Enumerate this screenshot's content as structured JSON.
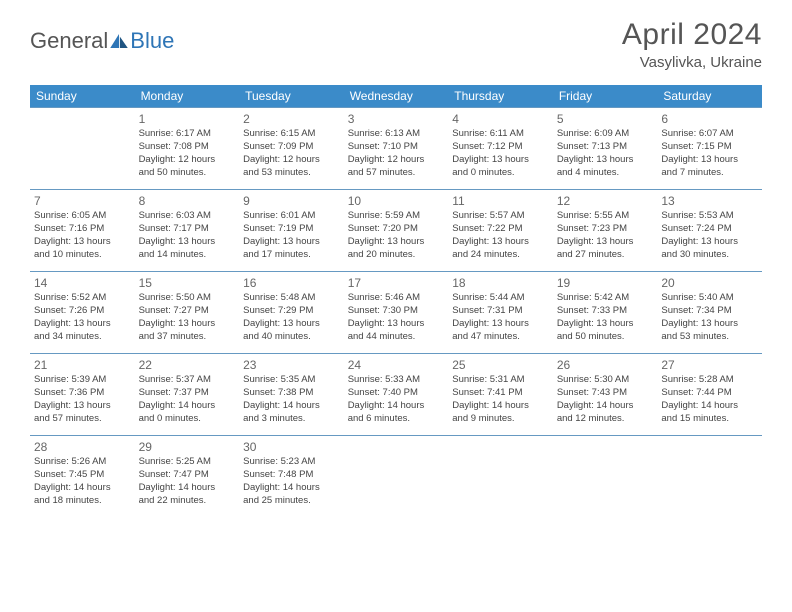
{
  "logo": {
    "part1": "General",
    "part2": "Blue"
  },
  "title": "April 2024",
  "location": "Vasylivka, Ukraine",
  "colors": {
    "header_bg": "#3b8bc9",
    "header_text": "#ffffff",
    "border": "#6699c2",
    "text": "#444444",
    "logo_blue": "#2e75b6",
    "title_gray": "#555555"
  },
  "weekdays": [
    "Sunday",
    "Monday",
    "Tuesday",
    "Wednesday",
    "Thursday",
    "Friday",
    "Saturday"
  ],
  "weeks": [
    [
      null,
      {
        "n": "1",
        "sr": "Sunrise: 6:17 AM",
        "ss": "Sunset: 7:08 PM",
        "d1": "Daylight: 12 hours",
        "d2": "and 50 minutes."
      },
      {
        "n": "2",
        "sr": "Sunrise: 6:15 AM",
        "ss": "Sunset: 7:09 PM",
        "d1": "Daylight: 12 hours",
        "d2": "and 53 minutes."
      },
      {
        "n": "3",
        "sr": "Sunrise: 6:13 AM",
        "ss": "Sunset: 7:10 PM",
        "d1": "Daylight: 12 hours",
        "d2": "and 57 minutes."
      },
      {
        "n": "4",
        "sr": "Sunrise: 6:11 AM",
        "ss": "Sunset: 7:12 PM",
        "d1": "Daylight: 13 hours",
        "d2": "and 0 minutes."
      },
      {
        "n": "5",
        "sr": "Sunrise: 6:09 AM",
        "ss": "Sunset: 7:13 PM",
        "d1": "Daylight: 13 hours",
        "d2": "and 4 minutes."
      },
      {
        "n": "6",
        "sr": "Sunrise: 6:07 AM",
        "ss": "Sunset: 7:15 PM",
        "d1": "Daylight: 13 hours",
        "d2": "and 7 minutes."
      }
    ],
    [
      {
        "n": "7",
        "sr": "Sunrise: 6:05 AM",
        "ss": "Sunset: 7:16 PM",
        "d1": "Daylight: 13 hours",
        "d2": "and 10 minutes."
      },
      {
        "n": "8",
        "sr": "Sunrise: 6:03 AM",
        "ss": "Sunset: 7:17 PM",
        "d1": "Daylight: 13 hours",
        "d2": "and 14 minutes."
      },
      {
        "n": "9",
        "sr": "Sunrise: 6:01 AM",
        "ss": "Sunset: 7:19 PM",
        "d1": "Daylight: 13 hours",
        "d2": "and 17 minutes."
      },
      {
        "n": "10",
        "sr": "Sunrise: 5:59 AM",
        "ss": "Sunset: 7:20 PM",
        "d1": "Daylight: 13 hours",
        "d2": "and 20 minutes."
      },
      {
        "n": "11",
        "sr": "Sunrise: 5:57 AM",
        "ss": "Sunset: 7:22 PM",
        "d1": "Daylight: 13 hours",
        "d2": "and 24 minutes."
      },
      {
        "n": "12",
        "sr": "Sunrise: 5:55 AM",
        "ss": "Sunset: 7:23 PM",
        "d1": "Daylight: 13 hours",
        "d2": "and 27 minutes."
      },
      {
        "n": "13",
        "sr": "Sunrise: 5:53 AM",
        "ss": "Sunset: 7:24 PM",
        "d1": "Daylight: 13 hours",
        "d2": "and 30 minutes."
      }
    ],
    [
      {
        "n": "14",
        "sr": "Sunrise: 5:52 AM",
        "ss": "Sunset: 7:26 PM",
        "d1": "Daylight: 13 hours",
        "d2": "and 34 minutes."
      },
      {
        "n": "15",
        "sr": "Sunrise: 5:50 AM",
        "ss": "Sunset: 7:27 PM",
        "d1": "Daylight: 13 hours",
        "d2": "and 37 minutes."
      },
      {
        "n": "16",
        "sr": "Sunrise: 5:48 AM",
        "ss": "Sunset: 7:29 PM",
        "d1": "Daylight: 13 hours",
        "d2": "and 40 minutes."
      },
      {
        "n": "17",
        "sr": "Sunrise: 5:46 AM",
        "ss": "Sunset: 7:30 PM",
        "d1": "Daylight: 13 hours",
        "d2": "and 44 minutes."
      },
      {
        "n": "18",
        "sr": "Sunrise: 5:44 AM",
        "ss": "Sunset: 7:31 PM",
        "d1": "Daylight: 13 hours",
        "d2": "and 47 minutes."
      },
      {
        "n": "19",
        "sr": "Sunrise: 5:42 AM",
        "ss": "Sunset: 7:33 PM",
        "d1": "Daylight: 13 hours",
        "d2": "and 50 minutes."
      },
      {
        "n": "20",
        "sr": "Sunrise: 5:40 AM",
        "ss": "Sunset: 7:34 PM",
        "d1": "Daylight: 13 hours",
        "d2": "and 53 minutes."
      }
    ],
    [
      {
        "n": "21",
        "sr": "Sunrise: 5:39 AM",
        "ss": "Sunset: 7:36 PM",
        "d1": "Daylight: 13 hours",
        "d2": "and 57 minutes."
      },
      {
        "n": "22",
        "sr": "Sunrise: 5:37 AM",
        "ss": "Sunset: 7:37 PM",
        "d1": "Daylight: 14 hours",
        "d2": "and 0 minutes."
      },
      {
        "n": "23",
        "sr": "Sunrise: 5:35 AM",
        "ss": "Sunset: 7:38 PM",
        "d1": "Daylight: 14 hours",
        "d2": "and 3 minutes."
      },
      {
        "n": "24",
        "sr": "Sunrise: 5:33 AM",
        "ss": "Sunset: 7:40 PM",
        "d1": "Daylight: 14 hours",
        "d2": "and 6 minutes."
      },
      {
        "n": "25",
        "sr": "Sunrise: 5:31 AM",
        "ss": "Sunset: 7:41 PM",
        "d1": "Daylight: 14 hours",
        "d2": "and 9 minutes."
      },
      {
        "n": "26",
        "sr": "Sunrise: 5:30 AM",
        "ss": "Sunset: 7:43 PM",
        "d1": "Daylight: 14 hours",
        "d2": "and 12 minutes."
      },
      {
        "n": "27",
        "sr": "Sunrise: 5:28 AM",
        "ss": "Sunset: 7:44 PM",
        "d1": "Daylight: 14 hours",
        "d2": "and 15 minutes."
      }
    ],
    [
      {
        "n": "28",
        "sr": "Sunrise: 5:26 AM",
        "ss": "Sunset: 7:45 PM",
        "d1": "Daylight: 14 hours",
        "d2": "and 18 minutes."
      },
      {
        "n": "29",
        "sr": "Sunrise: 5:25 AM",
        "ss": "Sunset: 7:47 PM",
        "d1": "Daylight: 14 hours",
        "d2": "and 22 minutes."
      },
      {
        "n": "30",
        "sr": "Sunrise: 5:23 AM",
        "ss": "Sunset: 7:48 PM",
        "d1": "Daylight: 14 hours",
        "d2": "and 25 minutes."
      },
      null,
      null,
      null,
      null
    ]
  ]
}
